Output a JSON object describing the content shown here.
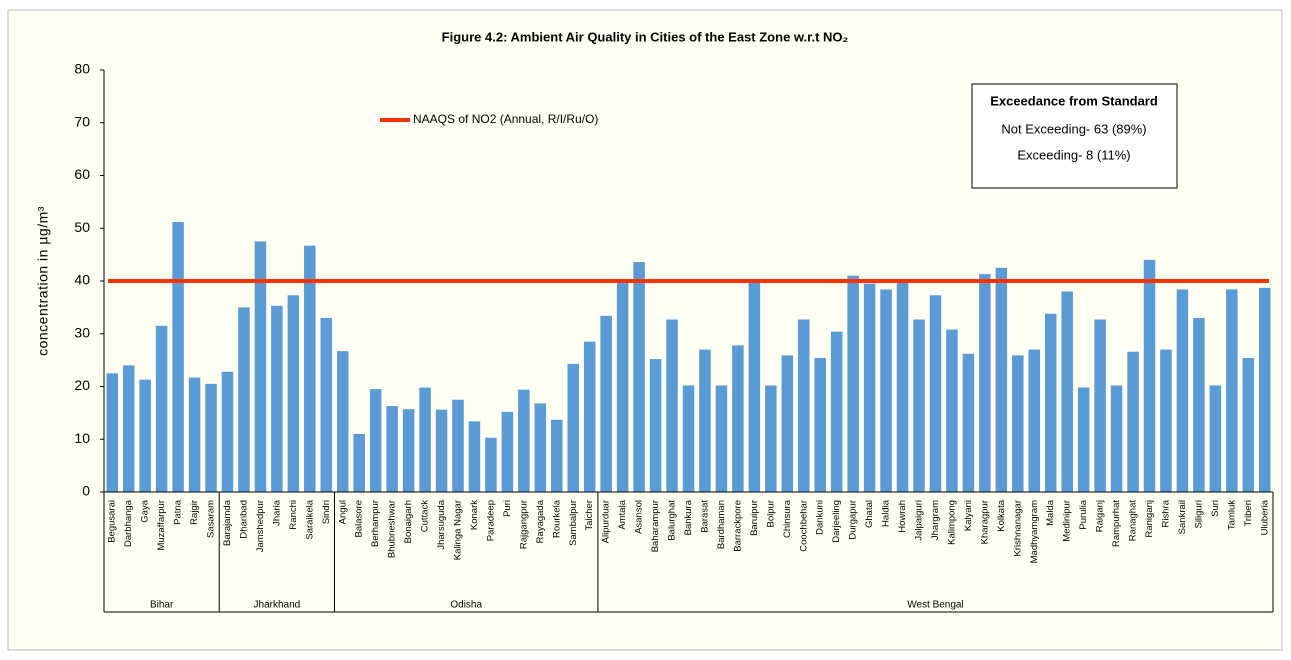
{
  "chart_data": {
    "type": "bar",
    "title": "Figure 4.2: Ambient Air Quality in Cities of the East Zone w.r.t NO₂",
    "y_label": "concentration in µg/m³",
    "color": "#5b9bd5",
    "ylim": [
      0,
      80
    ],
    "yticks": [
      0,
      10,
      20,
      30,
      40,
      50,
      60,
      70,
      80
    ],
    "grid": false,
    "groups": [
      {
        "name": "Bihar",
        "categories": [
          "Begusarai",
          "Darbhanga",
          "Gaya",
          "Muzaffarpur",
          "Patna",
          "Rajgir",
          "Sasaram"
        ],
        "values": [
          22.5,
          24,
          21.3,
          31.5,
          51.2,
          21.7,
          20.5
        ]
      },
      {
        "name": "Jharkhand",
        "categories": [
          "Barajamda",
          "Dhanbad",
          "Jamshedpur",
          "Jharia",
          "Ranchi",
          "Saraikela",
          "Sindri"
        ],
        "values": [
          22.8,
          35,
          47.5,
          35.3,
          37.3,
          46.7,
          33
        ]
      },
      {
        "name": "Odisha",
        "categories": [
          "Angul",
          "Balasore",
          "Berhampur",
          "Bhubneshwar",
          "Bonaigarh",
          "Cuttack",
          "Jharsuguda",
          "Kalinga Nagar",
          "Konark",
          "Paradeep",
          "Puri",
          "Rajgangpur",
          "Rayagada",
          "Rourkela",
          "Sambalpur",
          "Talcher"
        ],
        "values": [
          26.7,
          11,
          19.5,
          16.3,
          15.7,
          19.8,
          15.6,
          17.5,
          13.4,
          10.3,
          15.2,
          19.4,
          16.8,
          13.7,
          24.3,
          28.5
        ]
      },
      {
        "name": "West Bengal",
        "categories": [
          "Alipurduar",
          "Amtala",
          "Asansol",
          "Baharampur",
          "Balurghat",
          "Bankura",
          "Barasat",
          "Bardhaman",
          "Barrackpore",
          "Baruipur",
          "Bolpur",
          "Chinsura",
          "Coochbehar",
          "Dankuni",
          "Darjeeling",
          "Durgapur",
          "Ghatal",
          "Haldia",
          "Howrah",
          "Jalpaiguri",
          "Jhargram",
          "Kalimpong",
          "Kalyani",
          "Kharagpur",
          "Kolkata",
          "Krishnanagar",
          "Madhyamgram",
          "Malda",
          "Medinipur",
          "Purulia",
          "Raiganj",
          "Rampurhat",
          "Ranaghat",
          "Raniganj",
          "Rishra",
          "Sankrail",
          "Siliguri",
          "Suri",
          "Tamluk",
          "Triberi",
          "Uluberia"
        ],
        "values": [
          33.4,
          40,
          43.6,
          25.2,
          32.7,
          20.2,
          27,
          20.2,
          27.8,
          40,
          20.2,
          25.9,
          32.7,
          25.4,
          30.4,
          41,
          39.5,
          38.4,
          40,
          32.7,
          37.3,
          30.8,
          26.2,
          41.3,
          42.5,
          25.9,
          27,
          33.8,
          38,
          19.8,
          32.7,
          20.2,
          26.6,
          44,
          27,
          38.4,
          33,
          20.2,
          38.4,
          25.4,
          38.7
        ]
      }
    ],
    "reference_line": {
      "name": "NAAQS of NO2 (Annual, R/I/Ru/O)",
      "value": 40,
      "color": "#ff3300"
    },
    "annotation": {
      "title": "Exceedance from Standard",
      "lines": [
        "Not Exceeding- 63 (89%)",
        "Exceeding- 8 (11%)"
      ]
    }
  }
}
